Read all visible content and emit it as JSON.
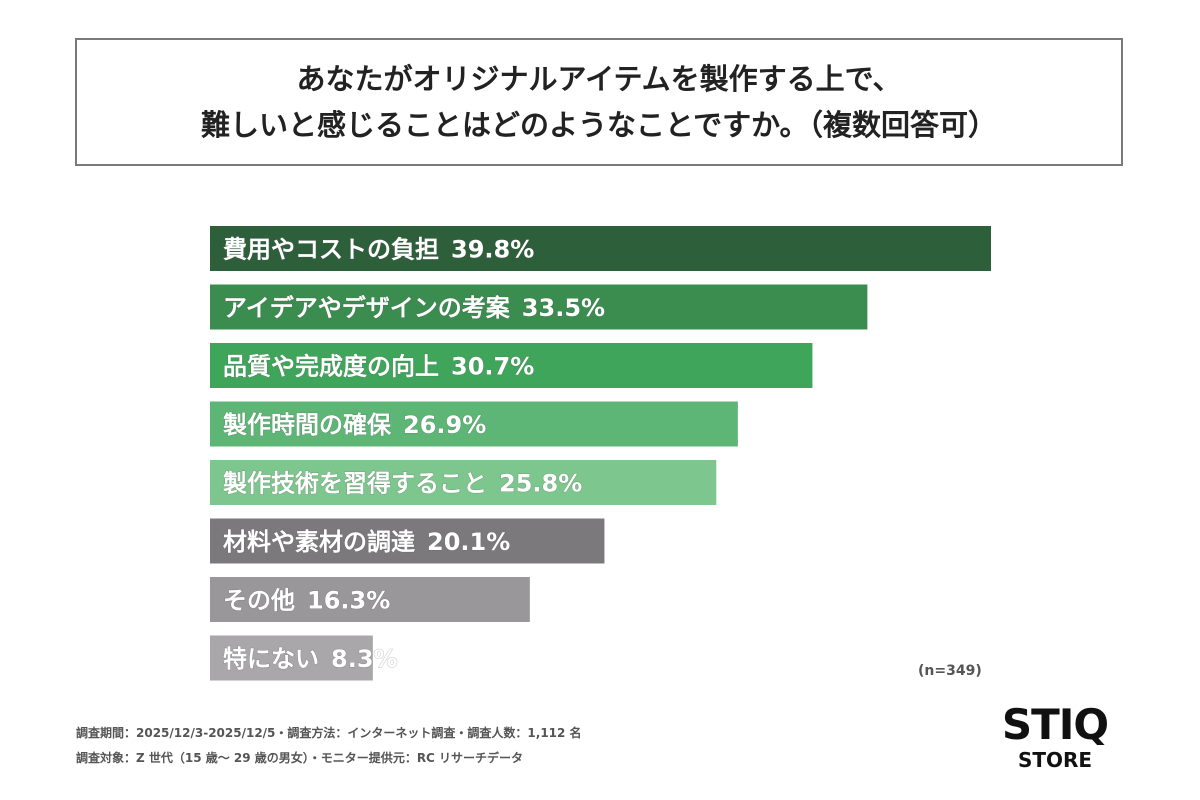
{
  "title": {
    "line1": "あなたがオリジナルアイテムを製作する上で、",
    "line2": "難しいと感じることはどのようなことですか。（複数回答可）"
  },
  "chart_data": {
    "type": "bar",
    "orientation": "horizontal",
    "categories": [
      "費用やコストの負担",
      "アイデアやデザインの考案",
      "品質や完成度の向上",
      "製作時間の確保",
      "製作技術を習得すること",
      "材料や素材の調達",
      "その他",
      "特にない"
    ],
    "values": [
      39.8,
      33.5,
      30.7,
      26.9,
      25.8,
      20.1,
      16.3,
      8.3
    ],
    "unit": "%",
    "colors": [
      "#2e5f3b",
      "#3a8c4f",
      "#3fa55b",
      "#5db675",
      "#7dc78e",
      "#7b797c",
      "#99979a",
      "#a9a7aa"
    ],
    "grid": false,
    "sample_size": "(n=349)"
  },
  "footer": {
    "line1": "調査期間：2025/12/3-2025/12/5・調査方法：インターネット調査・調査人数：1,112 名",
    "line2": "調査対象：Z 世代（15 歳～ 29 歳の男女）・モニター提供元：RC リサーチデータ"
  },
  "logo": {
    "main": "STIQ",
    "sub": "STORE"
  }
}
